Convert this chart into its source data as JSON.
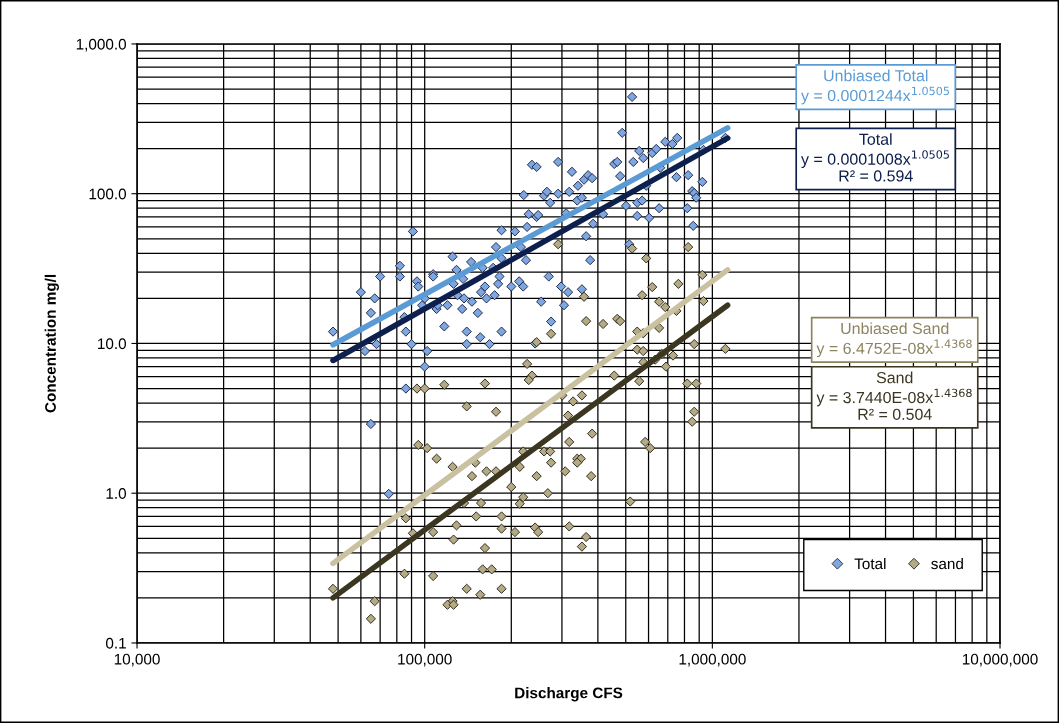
{
  "chart_data": {
    "type": "scatter",
    "xlabel": "Discharge CFS",
    "ylabel": "Concentration mg/l",
    "log": "xy",
    "grid": true,
    "legend": "bottom right",
    "xlim": [
      10000,
      10000000
    ],
    "xticks": [
      {
        "value": 10000,
        "label": "10,000"
      },
      {
        "value": 100000,
        "label": "100,000"
      },
      {
        "value": 1000000,
        "label": "1,000,000"
      },
      {
        "value": 10000000,
        "label": "10,000,000"
      }
    ],
    "ylim": [
      0.1,
      1000
    ],
    "yticks": [
      {
        "value": 0.1,
        "label": "0.1"
      },
      {
        "value": 1,
        "label": "1.0"
      },
      {
        "value": 10,
        "label": "10.0"
      },
      {
        "value": 100,
        "label": "100.0"
      },
      {
        "value": 1000,
        "label": "1,000.0"
      }
    ],
    "series": [
      {
        "name": "Total",
        "marker": "diamond",
        "color": "#7ea6e0",
        "x": [
          48000,
          60000,
          62000,
          65000,
          67000,
          68000,
          70000,
          82000,
          82000,
          85000,
          86000,
          90000,
          91000,
          94000,
          95000,
          98000,
          100000,
          100000,
          102000,
          107000,
          107000,
          110000,
          111000,
          117000,
          120000,
          125000,
          126000,
          129000,
          130000,
          135000,
          136000,
          137000,
          140000,
          140000,
          145000,
          146000,
          153000,
          156000,
          157000,
          159000,
          162000,
          164000,
          168000,
          173000,
          175000,
          177000,
          180000,
          182000,
          185000,
          185000,
          185000,
          200000,
          206000,
          213000,
          216000,
          220000,
          221000,
          225000,
          227000,
          230000,
          236000,
          245000,
          245000,
          248000,
          254000,
          260000,
          266000,
          270000,
          273000,
          275000,
          291000,
          291000,
          298000,
          305000,
          310000,
          315000,
          318000,
          325000,
          339000,
          341000,
          352000,
          352000,
          358000,
          364000,
          370000,
          376000,
          382000,
          385000,
          417000,
          456000,
          467000,
          478000,
          486000,
          501000,
          514000,
          526000,
          531000,
          548000,
          548000,
          557000,
          570000,
          575000,
          589000,
          603000,
          618000,
          638000,
          653000,
          659000,
          686000,
          726000,
          750000,
          755000,
          818000,
          824000,
          851000,
          858000,
          865000,
          879000,
          923000,
          931000,
          1110000,
          65000,
          75000,
          86000,
          242000
        ],
        "values": [
          12,
          22,
          8.9,
          16,
          20,
          9.9,
          28,
          33,
          28,
          15,
          12,
          9.9,
          56,
          26,
          24,
          18,
          20,
          7.0,
          8.9,
          29,
          28,
          17,
          18,
          13,
          18,
          38,
          25,
          31,
          21,
          17,
          27,
          20,
          12,
          9.9,
          35,
          19,
          16,
          11,
          22,
          32,
          24,
          20,
          9.9,
          32,
          21,
          44,
          25,
          28,
          12,
          57,
          37,
          24,
          56,
          26,
          44,
          24,
          98,
          36,
          60,
          73,
          156,
          151,
          70,
          72,
          19,
          97,
          103,
          28,
          87,
          14,
          100,
          163,
          24,
          18,
          74,
          22,
          103,
          140,
          90,
          113,
          94,
          23,
          124,
          52,
          133,
          36,
          127,
          63,
          73,
          158,
          163,
          131,
          255,
          83,
          46,
          443,
          163,
          71,
          87,
          193,
          90,
          173,
          113,
          69,
          187,
          199,
          80,
          149,
          222,
          215,
          129,
          236,
          80,
          133,
          104,
          61,
          101,
          94,
          120,
          196,
          236,
          2.9,
          0.99,
          5.0,
          10
        ]
      },
      {
        "name": "sand",
        "marker": "diamond",
        "color": "#b5aa86",
        "x": [
          291000,
          358000,
          364000,
          417000,
          467000,
          478000,
          526000,
          589000,
          618000,
          570000,
          653000,
          686000,
          750000,
          762000,
          824000,
          923000,
          931000,
          653000,
          865000,
          1110000,
          227000,
          236000,
          245000,
          275000,
          456000,
          548000,
          575000,
          230000,
          548000,
          575000,
          575000,
          633000,
          668000,
          690000,
          730000,
          557000,
          818000,
          879000,
          865000,
          851000,
          94000,
          100000,
          117000,
          162000,
          140000,
          177000,
          301000,
          328000,
          352000,
          315000,
          382000,
          318000,
          584000,
          608000,
          95000,
          102000,
          110000,
          125000,
          150000,
          146000,
          164000,
          177000,
          220000,
          214000,
          200000,
          220000,
          214000,
          245000,
          260000,
          273000,
          275000,
          308000,
          339000,
          349000,
          339000,
          379000,
          268000,
          518000,
          137000,
          157000,
          86000,
          91000,
          107000,
          129000,
          126000,
          151000,
          185000,
          162000,
          185000,
          206000,
          242000,
          248000,
          318000,
          364000,
          352000,
          159000,
          171000,
          85000,
          107000,
          140000,
          185000,
          156000,
          125000,
          120000,
          126000,
          48000,
          67000,
          65000
        ],
        "values": [
          46,
          20.5,
          14.1,
          13.5,
          14.6,
          14.1,
          43,
          37,
          23.8,
          21,
          19,
          17.5,
          16.5,
          25,
          44,
          28.7,
          19.2,
          12.7,
          9.9,
          9.2,
          7.3,
          6.1,
          10.2,
          11.6,
          6.1,
          12,
          11.7,
          5.7,
          9.1,
          8.9,
          7.5,
          7.8,
          8.5,
          7.0,
          8.3,
          5.6,
          5.4,
          5.4,
          3.5,
          3.0,
          5.0,
          5.0,
          5.3,
          5.4,
          3.8,
          3.5,
          4.5,
          4.1,
          4.5,
          3.3,
          2.5,
          2.2,
          2.2,
          2.0,
          2.1,
          2.0,
          1.7,
          1.5,
          1.6,
          1.3,
          1.4,
          1.4,
          1.9,
          1.5,
          1.1,
          0.94,
          0.85,
          1.3,
          1.9,
          1.9,
          1.6,
          1.4,
          1.7,
          1.7,
          1.6,
          1.3,
          1.0,
          0.88,
          0.86,
          0.86,
          0.68,
          0.54,
          0.55,
          0.61,
          0.49,
          0.7,
          0.7,
          0.43,
          0.58,
          0.55,
          0.59,
          0.55,
          0.6,
          0.51,
          0.44,
          0.31,
          0.31,
          0.29,
          0.28,
          0.23,
          0.23,
          0.21,
          0.19,
          0.18,
          0.18,
          0.23,
          0.19,
          0.145
        ]
      },
      {
        "type": "line",
        "color": "#5b9bd5",
        "x": [
          48000,
          1130000
        ],
        "values": [
          9.8,
          275
        ]
      },
      {
        "type": "line",
        "color": "#0d1f4c",
        "x": [
          48000,
          1130000
        ],
        "values": [
          7.7,
          235
        ]
      },
      {
        "type": "line",
        "color": "#c9c19f",
        "x": [
          48000,
          1130000
        ],
        "values": [
          0.34,
          31
        ]
      },
      {
        "type": "line",
        "color": "#3b3620",
        "x": [
          48000,
          1130000
        ],
        "values": [
          0.2,
          18
        ]
      }
    ],
    "annotations": [
      "Unbiased Total\ny = 0.0001244x$^{1.0505}$",
      "Total\ny = 0.0001008x$^{1.0505}$\nR² = 0.594",
      "Unbiased Sand\ny = 6.4752E-08x$^{1.4368}$",
      "Sand\ny = 3.7440E-08x$^{1.4368}$\nR² = 0.504"
    ]
  }
}
